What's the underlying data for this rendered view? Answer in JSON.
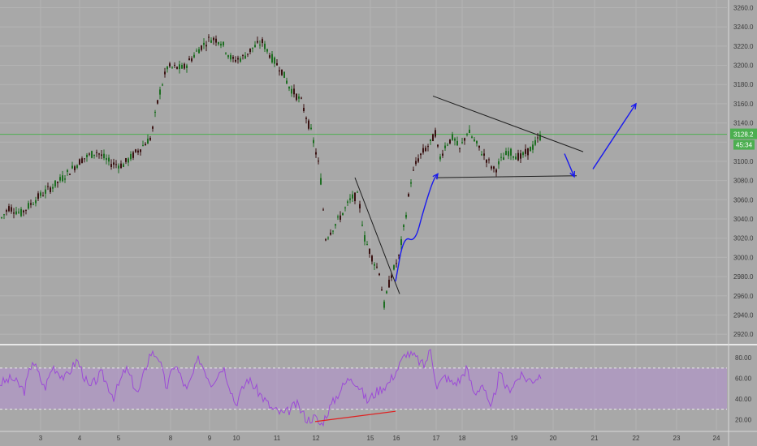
{
  "chart_data": [
    {
      "type": "candlestick",
      "title": "",
      "y_axis_ticks": [
        "3260.0",
        "3240.0",
        "3220.0",
        "3200.0",
        "3180.0",
        "3160.0",
        "3140.0",
        "3120.0",
        "3100.0",
        "3080.0",
        "3060.0",
        "3040.0",
        "3020.0",
        "3000.0",
        "2980.0",
        "2960.0",
        "2940.0",
        "2920.0"
      ],
      "ylim": [
        2910,
        3268
      ],
      "x_tick_labels": [
        "3",
        "4",
        "5",
        "8",
        "9",
        "10",
        "11",
        "12",
        "15",
        "16",
        "17",
        "18",
        "19",
        "20",
        "21",
        "22",
        "23",
        "24"
      ],
      "current_price": "3128.2",
      "countdown": "45:34",
      "horizontal_line_level": 3128.2,
      "price_path": [
        [
          0,
          3040
        ],
        [
          10,
          3052
        ],
        [
          25,
          3046
        ],
        [
          45,
          3062
        ],
        [
          70,
          3078
        ],
        [
          100,
          3102
        ],
        [
          118,
          3110
        ],
        [
          135,
          3098
        ],
        [
          150,
          3096
        ],
        [
          165,
          3108
        ],
        [
          185,
          3125
        ],
        [
          195,
          3170
        ],
        [
          205,
          3198
        ],
        [
          225,
          3197
        ],
        [
          245,
          3218
        ],
        [
          258,
          3228
        ],
        [
          270,
          3226
        ],
        [
          285,
          3205
        ],
        [
          298,
          3208
        ],
        [
          310,
          3218
        ],
        [
          322,
          3224
        ],
        [
          335,
          3206
        ],
        [
          345,
          3196
        ],
        [
          355,
          3178
        ],
        [
          370,
          3162
        ],
        [
          383,
          3128
        ],
        [
          393,
          3090
        ],
        [
          400,
          3020
        ],
        [
          410,
          3032
        ],
        [
          420,
          3045
        ],
        [
          432,
          3062
        ],
        [
          440,
          3064
        ],
        [
          448,
          3020
        ],
        [
          458,
          2998
        ],
        [
          466,
          2985
        ],
        [
          472,
          2950
        ],
        [
          480,
          2980
        ],
        [
          490,
          3000
        ],
        [
          498,
          3040
        ],
        [
          505,
          3080
        ],
        [
          512,
          3100
        ],
        [
          520,
          3110
        ],
        [
          530,
          3120
        ],
        [
          535,
          3130
        ],
        [
          540,
          3102
        ],
        [
          548,
          3118
        ],
        [
          557,
          3125
        ],
        [
          565,
          3112
        ],
        [
          575,
          3132
        ],
        [
          590,
          3112
        ],
        [
          600,
          3100
        ],
        [
          608,
          3090
        ],
        [
          615,
          3100
        ],
        [
          625,
          3110
        ],
        [
          640,
          3104
        ],
        [
          655,
          3115
        ],
        [
          666,
          3128
        ]
      ],
      "trendlines": [
        {
          "color": "#1f1f1f",
          "points": [
            [
              437,
              3083
            ],
            [
              492,
              2962
            ]
          ]
        },
        {
          "color": "#1f1f1f",
          "points": [
            [
              533,
              3168
            ],
            [
              718,
              3110
            ]
          ]
        },
        {
          "color": "#1f1f1f",
          "points": [
            [
              537,
              3083
            ],
            [
              710,
              3085
            ]
          ]
        }
      ],
      "projection_arrows": [
        {
          "color": "#1a1aee",
          "type": "curve",
          "points": [
            [
              487,
              2975
            ],
            [
              497,
              3022
            ],
            [
              511,
              3016
            ],
            [
              521,
              3048
            ],
            [
              533,
              3080
            ],
            [
              539,
              3087
            ]
          ]
        },
        {
          "color": "#1a1aee",
          "type": "line",
          "points": [
            [
              695,
              3108
            ],
            [
              707,
              3084
            ]
          ]
        },
        {
          "color": "#1a1aee",
          "type": "line",
          "points": [
            [
              730,
              3092
            ],
            [
              783,
              3160
            ]
          ]
        }
      ]
    },
    {
      "type": "line",
      "title": "",
      "y_axis_ticks": [
        "80.00",
        "60.00",
        "40.00",
        "20.00"
      ],
      "ylim": [
        10,
        92
      ],
      "upper_band": 70,
      "lower_band": 30,
      "band_color": "#b38fcf",
      "line_color": "#9c4bd6",
      "rsi_path": [
        [
          0,
          55
        ],
        [
          15,
          60
        ],
        [
          30,
          48
        ],
        [
          40,
          78
        ],
        [
          55,
          50
        ],
        [
          65,
          72
        ],
        [
          80,
          60
        ],
        [
          95,
          78
        ],
        [
          110,
          50
        ],
        [
          125,
          65
        ],
        [
          140,
          42
        ],
        [
          155,
          70
        ],
        [
          170,
          45
        ],
        [
          185,
          85
        ],
        [
          195,
          82
        ],
        [
          205,
          50
        ],
        [
          215,
          75
        ],
        [
          230,
          48
        ],
        [
          245,
          80
        ],
        [
          260,
          55
        ],
        [
          275,
          72
        ],
        [
          290,
          35
        ],
        [
          305,
          60
        ],
        [
          320,
          45
        ],
        [
          335,
          30
        ],
        [
          350,
          25
        ],
        [
          365,
          35
        ],
        [
          378,
          20
        ],
        [
          388,
          22
        ],
        [
          395,
          14
        ],
        [
          405,
          30
        ],
        [
          420,
          50
        ],
        [
          432,
          62
        ],
        [
          442,
          52
        ],
        [
          452,
          38
        ],
        [
          465,
          48
        ],
        [
          478,
          55
        ],
        [
          490,
          70
        ],
        [
          500,
          85
        ],
        [
          512,
          80
        ],
        [
          522,
          72
        ],
        [
          530,
          88
        ],
        [
          538,
          52
        ],
        [
          548,
          62
        ],
        [
          557,
          55
        ],
        [
          566,
          58
        ],
        [
          574,
          70
        ],
        [
          584,
          45
        ],
        [
          594,
          55
        ],
        [
          604,
          28
        ],
        [
          615,
          65
        ],
        [
          625,
          48
        ],
        [
          640,
          62
        ],
        [
          655,
          58
        ],
        [
          666,
          64
        ]
      ],
      "divergence_line": {
        "color": "#e02020",
        "points": [
          [
            388,
            18
          ],
          [
            487,
            28
          ]
        ]
      }
    }
  ],
  "x_axis": {
    "tick_positions": [
      50,
      98,
      146,
      210,
      258,
      291,
      341,
      389,
      456,
      488,
      537,
      569,
      633,
      681,
      732,
      783,
      833,
      882
    ]
  }
}
